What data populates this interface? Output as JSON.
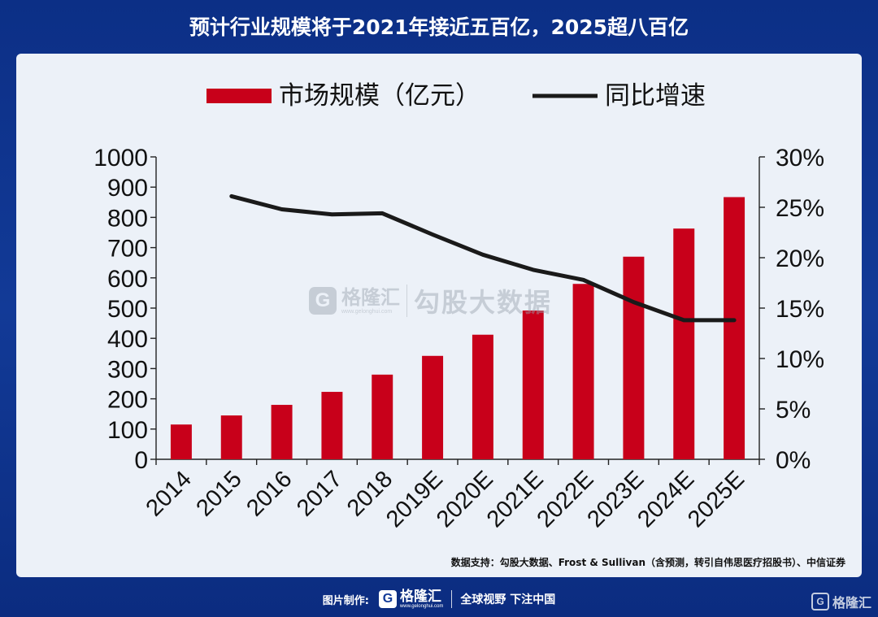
{
  "page": {
    "title": "预计行业规模将于2021年接近五百亿，2025超八百亿",
    "source": "数据支持：勾股大数据、Frost & Sullivan（含预测，转引自伟思医疗招股书）、中信证券"
  },
  "watermark": {
    "logo_letter": "G",
    "brand": "格隆汇",
    "url": "www.gelonghui.com",
    "text": "勾股大数据"
  },
  "footer": {
    "label": "图片制作:",
    "logo_letter": "G",
    "brand": "格隆汇",
    "url": "www.gelonghui.com",
    "slogan": "全球视野 下注中国"
  },
  "corner_logo": {
    "letter": "G",
    "brand": "格隆汇"
  },
  "colors": {
    "bar": "#c8001a",
    "line": "#1a1a1a",
    "title_bg": "#123a97",
    "panel_bg": "#ecf1f8"
  },
  "chart_data": {
    "type": "bar",
    "categories": [
      "2014",
      "2015",
      "2016",
      "2017",
      "2018",
      "2019E",
      "2020E",
      "2021E",
      "2022E",
      "2023E",
      "2024E",
      "2025E"
    ],
    "series": [
      {
        "name": "市场规模（亿元）",
        "type": "bar",
        "axis": "left",
        "values": [
          115,
          145,
          180,
          223,
          280,
          342,
          412,
          492,
          580,
          670,
          763,
          867
        ]
      },
      {
        "name": "同比增速",
        "type": "line",
        "axis": "right",
        "values": [
          null,
          0.261,
          0.248,
          0.243,
          0.244,
          0.223,
          0.203,
          0.188,
          0.178,
          0.156,
          0.138,
          0.138
        ]
      }
    ],
    "y_left": {
      "min": 0,
      "max": 1000,
      "ticks": [
        "0",
        "100",
        "200",
        "300",
        "400",
        "500",
        "600",
        "700",
        "800",
        "900",
        "1000"
      ]
    },
    "y_right": {
      "min": 0,
      "max": 0.3,
      "ticks": [
        "0%",
        "5%",
        "10%",
        "15%",
        "20%",
        "25%",
        "30%"
      ]
    },
    "legend_position": "top-center",
    "grid": false
  }
}
